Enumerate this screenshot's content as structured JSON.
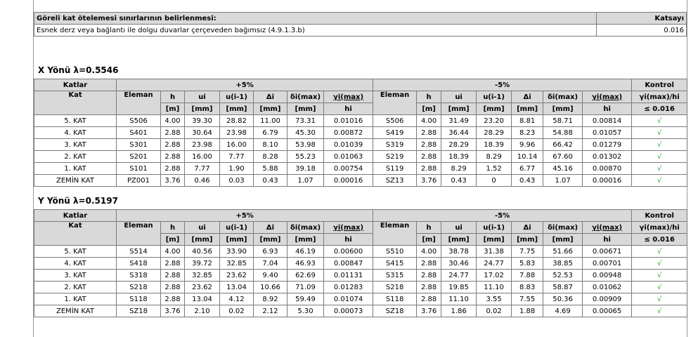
{
  "header": {
    "title": "Göreli kat ötelemesi sınırlarının belirlenmesi:",
    "column": "Katsayı",
    "row": [
      "Esnek derz veya bağlantı ile dolgu duvarlar çerçeveden bağımsız (4.9.1.3.b)",
      "0.016"
    ]
  },
  "x": {
    "title": "X Yönü λ=0.5546",
    "groups": [
      "Katlar",
      "+5%",
      "-5%",
      "Kontrol"
    ],
    "columns": [
      "Kat",
      "Eleman",
      "h",
      "ui",
      "u(i-1)",
      "Δi",
      "δi(max)",
      "γi(max)",
      "Eleman",
      "h",
      "ui",
      "u(i-1)",
      "Δi",
      "δi(max)",
      "γi(max)",
      "γi(max)/hi"
    ],
    "units": [
      "[m]",
      "[mm]",
      "[mm]",
      "[mm]",
      "[mm]",
      "hi",
      "[m]",
      "[mm]",
      "[mm]",
      "[mm]",
      "[mm]",
      "hi",
      "≤ 0.016"
    ],
    "rows": [
      [
        "5. KAT",
        "S506",
        "4.00",
        "39.30",
        "28.82",
        "11.00",
        "73.31",
        "0.01016",
        "S506",
        "4.00",
        "31.49",
        "23.20",
        "8.81",
        "58.71",
        "0.00814",
        "√"
      ],
      [
        "4. KAT",
        "S401",
        "2.88",
        "30.64",
        "23.98",
        "6.79",
        "45.30",
        "0.00872",
        "S419",
        "2.88",
        "36.44",
        "28.29",
        "8.23",
        "54.88",
        "0.01057",
        "√"
      ],
      [
        "3. KAT",
        "S301",
        "2.88",
        "23.98",
        "16.00",
        "8.10",
        "53.98",
        "0.01039",
        "S319",
        "2.88",
        "28.29",
        "18.39",
        "9.96",
        "66.42",
        "0.01279",
        "√"
      ],
      [
        "2. KAT",
        "S201",
        "2.88",
        "16.00",
        "7.77",
        "8.28",
        "55.23",
        "0.01063",
        "S219",
        "2.88",
        "18.39",
        "8.29",
        "10.14",
        "67.60",
        "0.01302",
        "√"
      ],
      [
        "1. KAT",
        "S101",
        "2.88",
        "7.77",
        "1.90",
        "5.88",
        "39.18",
        "0.00754",
        "S119",
        "2.88",
        "8.29",
        "1.52",
        "6.77",
        "45.16",
        "0.00870",
        "√"
      ],
      [
        "ZEMİN KAT",
        "PZ001",
        "3.76",
        "0.46",
        "0.03",
        "0.43",
        "1.07",
        "0.00016",
        "SZ13",
        "3.76",
        "0.43",
        "0",
        "0.43",
        "1.07",
        "0.00016",
        "√"
      ]
    ]
  },
  "y": {
    "title": "Y Yönü λ=0.5197",
    "groups": [
      "Katlar",
      "+5%",
      "-5%",
      "Kontrol"
    ],
    "columns": [
      "Kat",
      "Eleman",
      "h",
      "ui",
      "u(i-1)",
      "Δi",
      "δi(max)",
      "γi(max)",
      "Eleman",
      "h",
      "ui",
      "u(i-1)",
      "Δi",
      "δi(max)",
      "γi(max)",
      "γi(max)/hi"
    ],
    "units": [
      "[m]",
      "[mm]",
      "[mm]",
      "[mm]",
      "[mm]",
      "hi",
      "[m]",
      "[mm]",
      "[mm]",
      "[mm]",
      "[mm]",
      "hi",
      "≤ 0.016"
    ],
    "rows": [
      [
        "5. KAT",
        "S514",
        "4.00",
        "40.56",
        "33.90",
        "6.93",
        "46.19",
        "0.00600",
        "S510",
        "4.00",
        "38.78",
        "31.38",
        "7.75",
        "51.66",
        "0.00671",
        "√"
      ],
      [
        "4. KAT",
        "S418",
        "2.88",
        "39.72",
        "32.85",
        "7.04",
        "46.93",
        "0.00847",
        "S415",
        "2.88",
        "30.46",
        "24.77",
        "5.83",
        "38.85",
        "0.00701",
        "√"
      ],
      [
        "3. KAT",
        "S318",
        "2.88",
        "32.85",
        "23.62",
        "9.40",
        "62.69",
        "0.01131",
        "S315",
        "2.88",
        "24.77",
        "17.02",
        "7.88",
        "52.53",
        "0.00948",
        "√"
      ],
      [
        "2. KAT",
        "S218",
        "2.88",
        "23.62",
        "13.04",
        "10.66",
        "71.09",
        "0.01283",
        "S218",
        "2.88",
        "19.85",
        "11.10",
        "8.83",
        "58.87",
        "0.01062",
        "√"
      ],
      [
        "1. KAT",
        "S118",
        "2.88",
        "13.04",
        "4.12",
        "8.92",
        "59.49",
        "0.01074",
        "S118",
        "2.88",
        "11.10",
        "3.55",
        "7.55",
        "50.36",
        "0.00909",
        "√"
      ],
      [
        "ZEMİN KAT",
        "SZ18",
        "3.76",
        "2.10",
        "0.02",
        "2.12",
        "5.30",
        "0.00073",
        "SZ18",
        "3.76",
        "1.86",
        "0.02",
        "1.88",
        "4.69",
        "0.00065",
        "√"
      ]
    ]
  }
}
